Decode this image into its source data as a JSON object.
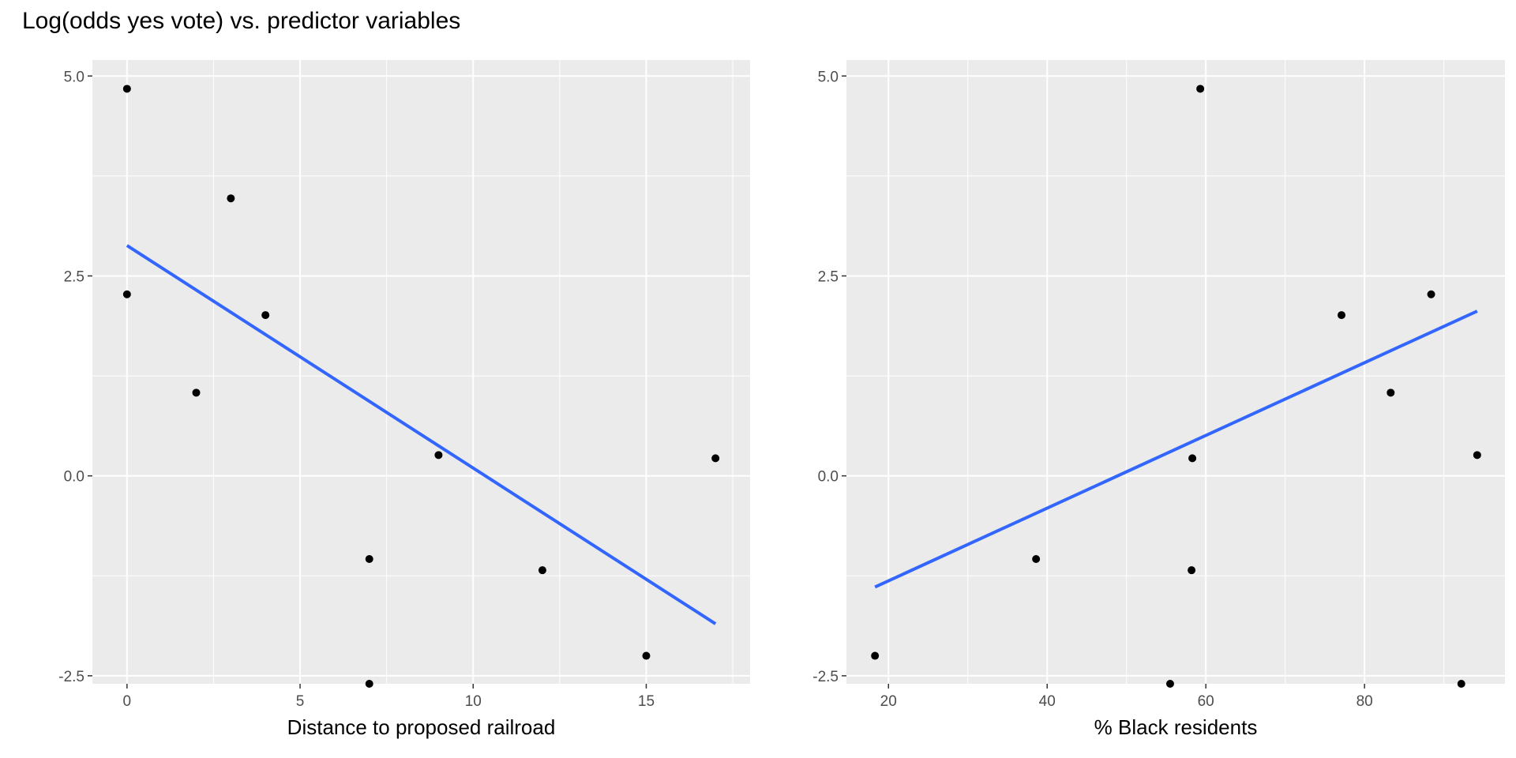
{
  "title": "Log(odds yes vote) vs. predictor variables",
  "colors": {
    "panel_bg": "#ebebeb",
    "grid": "#ffffff",
    "point": "#000000",
    "fit_line": "#3366ff"
  },
  "chart_data": [
    {
      "type": "scatter",
      "xlabel": "Distance to proposed railroad",
      "ylabel": "",
      "xlim": [
        -1,
        18
      ],
      "ylim": [
        -2.6,
        5.2
      ],
      "xticks": [
        0,
        5,
        10,
        15
      ],
      "xtick_labels": [
        "0",
        "5",
        "10",
        "15"
      ],
      "yticks": [
        -2.5,
        0,
        2.5,
        5
      ],
      "ytick_labels": [
        "-2.5",
        "0.0",
        "2.5",
        "5.0"
      ],
      "points": [
        {
          "x": 0,
          "y": 4.84
        },
        {
          "x": 0,
          "y": 2.27
        },
        {
          "x": 2,
          "y": 1.04
        },
        {
          "x": 3,
          "y": 3.47
        },
        {
          "x": 4,
          "y": 2.01
        },
        {
          "x": 7,
          "y": -1.04
        },
        {
          "x": 7,
          "y": -2.6
        },
        {
          "x": 9,
          "y": 0.26
        },
        {
          "x": 12,
          "y": -1.18
        },
        {
          "x": 15,
          "y": -2.25
        },
        {
          "x": 17,
          "y": 0.22
        }
      ],
      "fit_line": {
        "x": [
          0,
          17
        ],
        "y": [
          2.88,
          -1.85
        ]
      },
      "grid": true
    },
    {
      "type": "scatter",
      "xlabel": "% Black residents",
      "ylabel": "",
      "xlim": [
        14.7,
        97.7
      ],
      "ylim": [
        -2.6,
        5.2
      ],
      "xticks": [
        20,
        40,
        60,
        80
      ],
      "xtick_labels": [
        "20",
        "40",
        "60",
        "80"
      ],
      "yticks": [
        -2.5,
        0,
        2.5,
        5
      ],
      "ytick_labels": [
        "-2.5",
        "0.0",
        "2.5",
        "5.0"
      ],
      "points": [
        {
          "x": 18.3,
          "y": -2.25
        },
        {
          "x": 38.6,
          "y": -1.04
        },
        {
          "x": 55.5,
          "y": -2.6
        },
        {
          "x": 58.3,
          "y": 0.22
        },
        {
          "x": 58.2,
          "y": -1.18
        },
        {
          "x": 59.3,
          "y": 4.84
        },
        {
          "x": 77.1,
          "y": 2.01
        },
        {
          "x": 83.3,
          "y": 1.04
        },
        {
          "x": 88.4,
          "y": 2.27
        },
        {
          "x": 92.2,
          "y": -2.6
        },
        {
          "x": 94.2,
          "y": 0.26
        }
      ],
      "fit_line": {
        "x": [
          18.3,
          94.2
        ],
        "y": [
          -1.39,
          2.06
        ]
      },
      "grid": true
    }
  ]
}
